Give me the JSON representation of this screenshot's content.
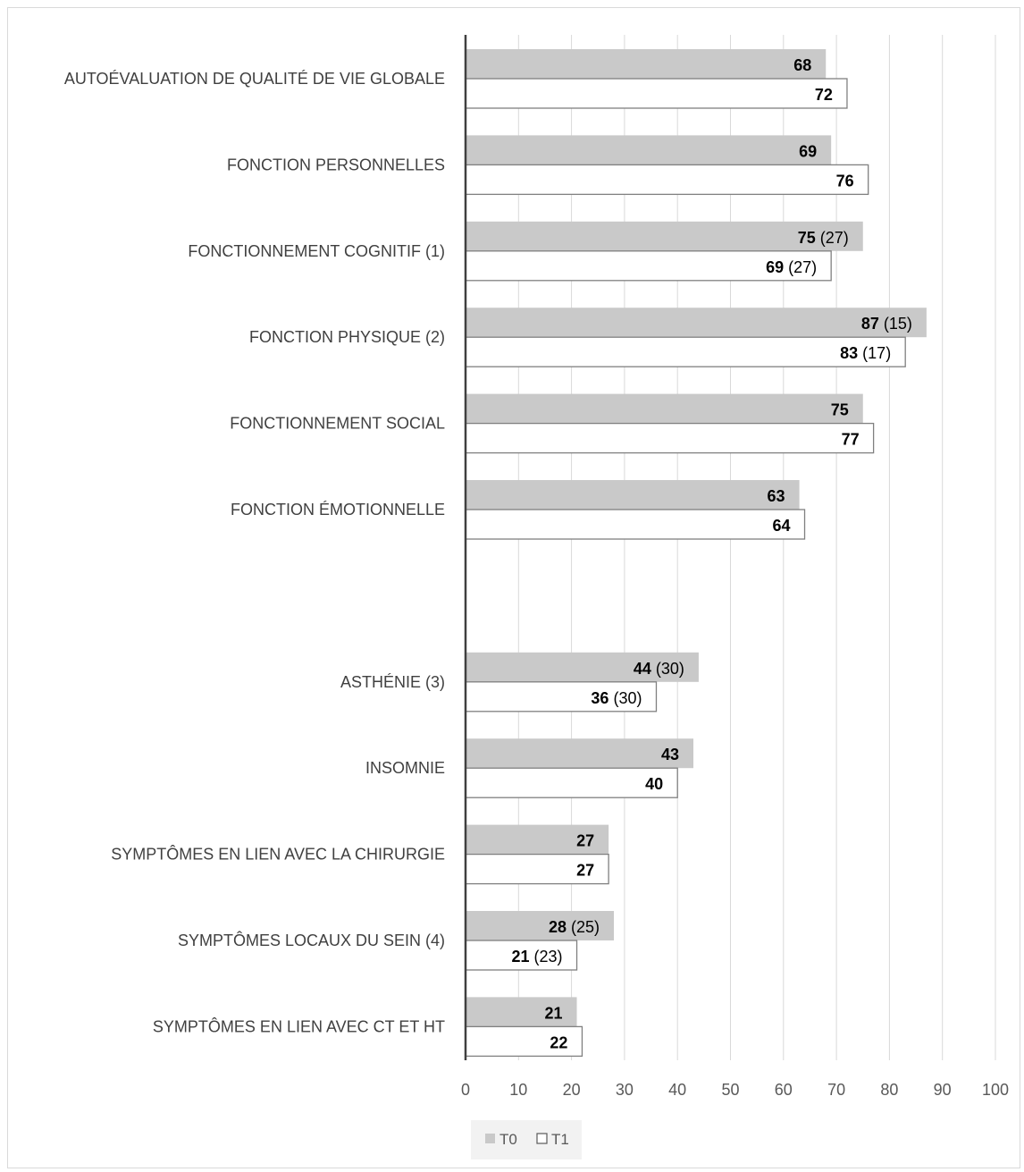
{
  "chart_data": {
    "type": "bar",
    "orientation": "horizontal",
    "categories": [
      "AUTOÉVALUATION DE QUALITÉ DE VIE GLOBALE",
      "FONCTION PERSONNELLES",
      "FONCTIONNEMENT COGNITIF (1)",
      "FONCTION PHYSIQUE (2)",
      "FONCTIONNEMENT SOCIAL",
      "FONCTION ÉMOTIONNELLE",
      "",
      "ASTHÉNIE (3)",
      "INSOMNIE",
      "SYMPTÔMES EN LIEN AVEC LA CHIRURGIE",
      "SYMPTÔMES LOCAUX DU SEIN (4)",
      "SYMPTÔMES EN LIEN AVEC CT ET HT"
    ],
    "series": [
      {
        "name": "T0",
        "color": "#c9c9c9",
        "values": [
          68,
          69,
          75,
          87,
          75,
          63,
          null,
          44,
          43,
          27,
          28,
          21
        ],
        "sd": [
          "",
          "",
          "(27)",
          "(15)",
          "",
          "",
          "",
          "(30)",
          "",
          "",
          "(25)",
          ""
        ]
      },
      {
        "name": "T1",
        "color": "#ffffff",
        "values": [
          72,
          76,
          69,
          83,
          77,
          64,
          null,
          36,
          40,
          27,
          21,
          22
        ],
        "sd": [
          "",
          "",
          "(27)",
          "(17)",
          "",
          "",
          "",
          "(30)",
          "",
          "",
          "(23)",
          ""
        ]
      }
    ],
    "xlim": [
      0,
      100
    ],
    "xticks": [
      0,
      10,
      20,
      30,
      40,
      50,
      60,
      70,
      80,
      90,
      100
    ],
    "grid": true,
    "legend_position": "bottom"
  }
}
